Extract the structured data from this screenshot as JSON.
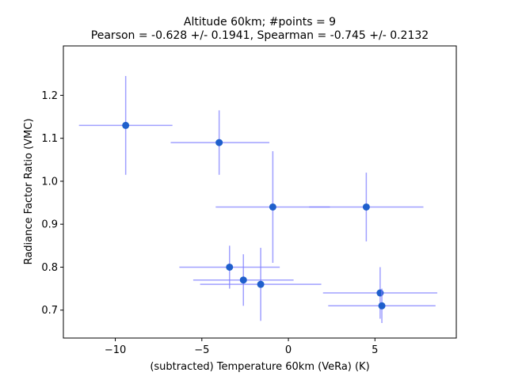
{
  "chart_data": {
    "type": "scatter",
    "title_line1": "Altitude 60km;  #points =  9",
    "title_line2": "Pearson = -0.628 +/-  0.1941, Spearman = -0.745 +/-  0.2132",
    "xlabel": "(subtracted) Temperature 60km (VeRa) (K)",
    "ylabel": "Radiance Factor Ratio (VMC)",
    "xlim": [
      -13.0,
      9.7
    ],
    "ylim": [
      0.635,
      1.315
    ],
    "xticks": [
      -10,
      -5,
      0,
      5
    ],
    "xtick_labels": [
      "−10",
      "−5",
      "0",
      "5"
    ],
    "yticks": [
      0.7,
      0.8,
      0.9,
      1.0,
      1.1,
      1.2
    ],
    "ytick_labels": [
      "0.7",
      "0.8",
      "0.9",
      "1.0",
      "1.1",
      "1.2"
    ],
    "grid": false,
    "marker_color": "#1f5fcc",
    "errorbar_color": "#8080ff",
    "points": [
      {
        "x": -9.4,
        "y": 1.13,
        "xerr": [
          2.7,
          2.7
        ],
        "yerr": [
          0.115,
          0.115
        ]
      },
      {
        "x": -4.0,
        "y": 1.09,
        "xerr": [
          2.8,
          2.9
        ],
        "yerr": [
          0.075,
          0.075
        ]
      },
      {
        "x": -0.9,
        "y": 0.94,
        "xerr": [
          3.3,
          3.3
        ],
        "yerr": [
          0.13,
          0.13
        ]
      },
      {
        "x": 4.5,
        "y": 0.94,
        "xerr": [
          3.3,
          3.3
        ],
        "yerr": [
          0.08,
          0.08
        ]
      },
      {
        "x": -3.4,
        "y": 0.8,
        "xerr": [
          2.9,
          2.9
        ],
        "yerr": [
          0.05,
          0.05
        ]
      },
      {
        "x": -2.6,
        "y": 0.77,
        "xerr": [
          2.9,
          2.9
        ],
        "yerr": [
          0.06,
          0.06
        ]
      },
      {
        "x": -1.6,
        "y": 0.76,
        "xerr": [
          3.5,
          3.5
        ],
        "yerr": [
          0.085,
          0.085
        ]
      },
      {
        "x": 5.3,
        "y": 0.74,
        "xerr": [
          3.3,
          3.3
        ],
        "yerr": [
          0.06,
          0.06
        ]
      },
      {
        "x": 5.4,
        "y": 0.71,
        "xerr": [
          3.1,
          3.1
        ],
        "yerr": [
          0.04,
          0.04
        ]
      }
    ]
  }
}
